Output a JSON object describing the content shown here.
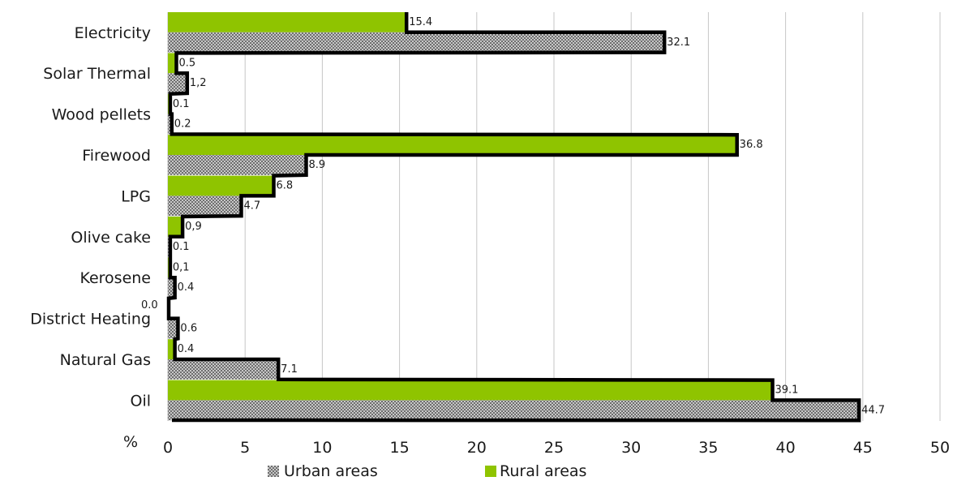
{
  "chart_data": {
    "type": "bar",
    "orientation": "horizontal",
    "categories": [
      "Electricity",
      "Solar Thermal",
      "Wood pellets",
      "Firewood",
      "LPG",
      "Olive cake",
      "Kerosene",
      "District Heating",
      "Natural Gas",
      "Oil"
    ],
    "series": [
      {
        "name": "Rural areas",
        "color": "#8fc400",
        "pattern": "solid",
        "values": [
          15.4,
          0.5,
          0.1,
          36.8,
          6.8,
          0.9,
          0.1,
          0.0,
          0.4,
          39.1
        ],
        "labels": [
          "15.4",
          "0.5",
          "0.1",
          "36.8",
          "6.8",
          "0,9",
          "0,1",
          "0.0",
          "0.4",
          "39.1"
        ]
      },
      {
        "name": "Urban areas",
        "color": "#8a8a8a",
        "pattern": "checkered",
        "values": [
          32.1,
          1.2,
          0.2,
          8.9,
          4.7,
          0.1,
          0.4,
          0.6,
          7.1,
          44.7
        ],
        "labels": [
          "32.1",
          "1,2",
          "0.2",
          "8.9",
          "4.7",
          "0.1",
          "0.4",
          "0.6",
          "7.1",
          "44.7"
        ]
      }
    ],
    "xlabel": "%",
    "xlim": [
      0,
      50
    ],
    "xticks": [
      0,
      5,
      10,
      15,
      20,
      25,
      30,
      35,
      40,
      45,
      50
    ],
    "grid": "vertical",
    "legend": {
      "position": "bottom",
      "entries": [
        "Urban areas",
        "Rural areas"
      ]
    }
  }
}
